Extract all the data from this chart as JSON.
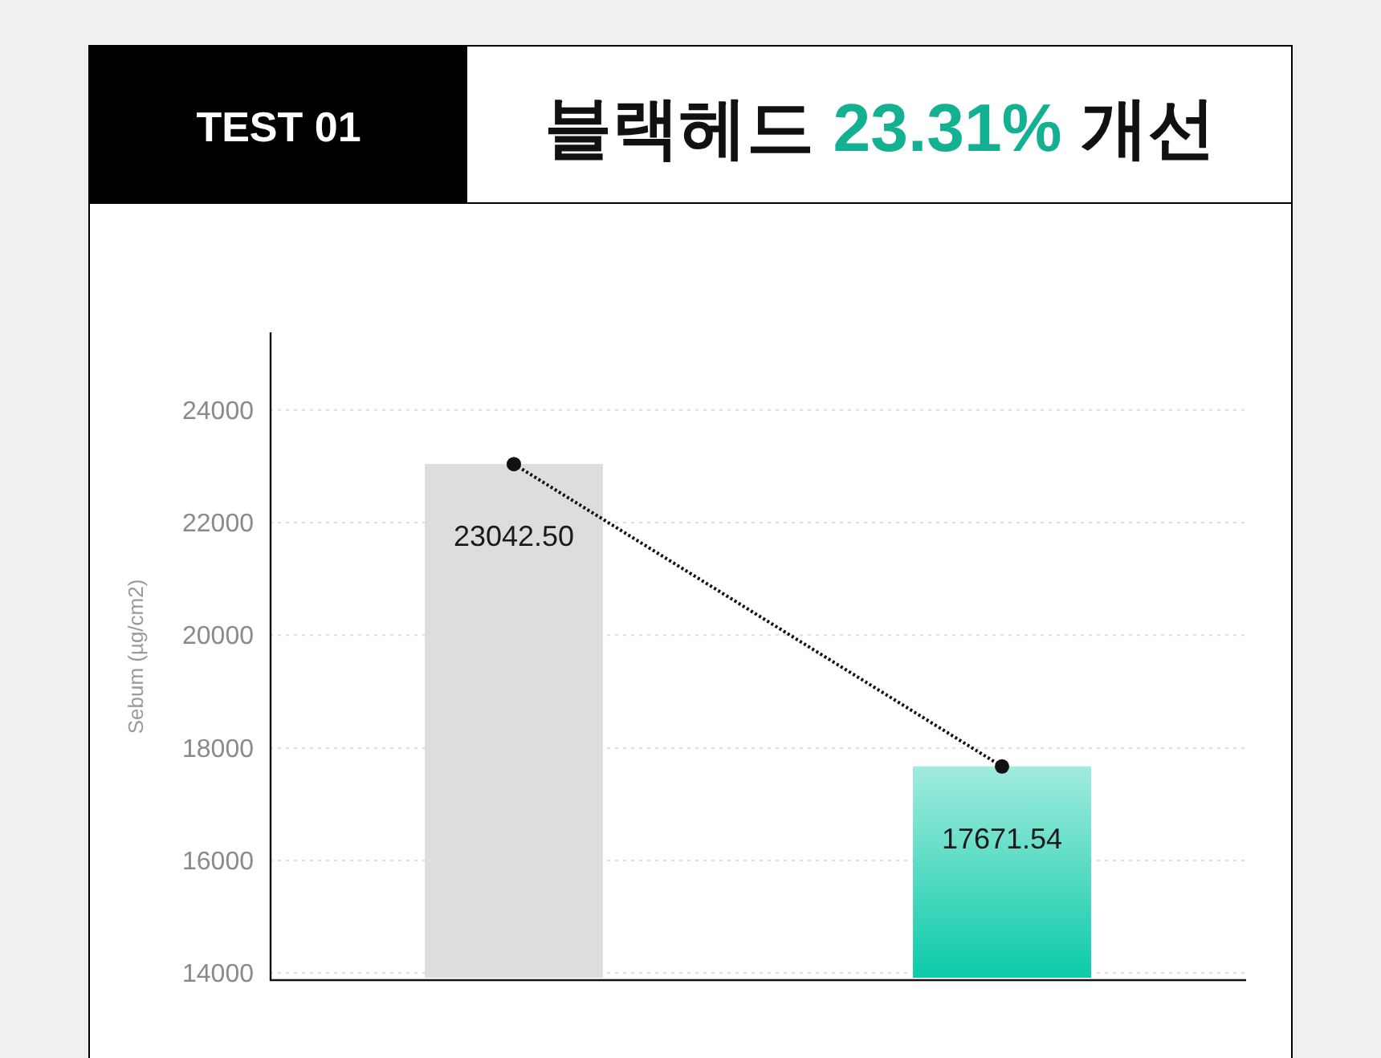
{
  "chart_data": {
    "type": "bar",
    "title": "블랙헤드 23.31% 개선",
    "annotations": [
      "TEST 01"
    ],
    "ylabel": "Sebum (µg/cm2)",
    "categories": [
      null,
      null
    ],
    "series": [
      {
        "colors": [
          "#dddddd",
          "#0ccba9"
        ],
        "values": [
          23042.5,
          17671.54
        ],
        "value_labels": [
          "23042.50",
          "17671.54"
        ]
      },
      {
        "type": "line",
        "color": "#111111",
        "values": [
          23040,
          17670
        ],
        "marker": "circle",
        "line_style": "dotted"
      }
    ],
    "ylim": [
      13860,
      25380
    ],
    "yticks": [
      14000,
      16000,
      18000,
      20000,
      22000,
      24000
    ],
    "grid": "y"
  }
}
